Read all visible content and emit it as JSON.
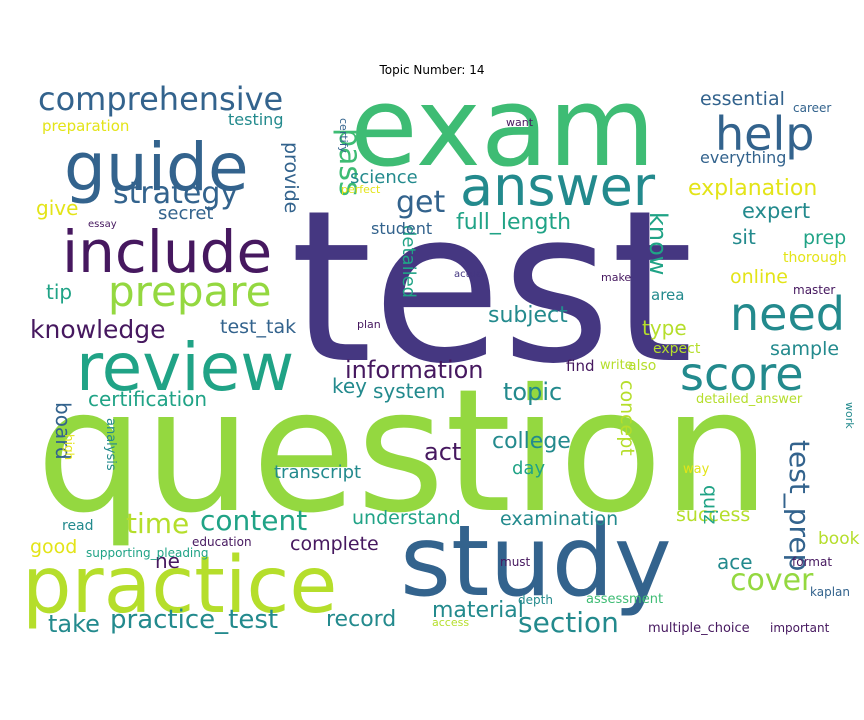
{
  "title": "Topic Number: 14",
  "palette": {
    "dark_purple": "#46185f",
    "indigo": "#453781",
    "blue": "#33638d",
    "teal": "#238a8d",
    "green": "#20a386",
    "mint": "#3ebc74",
    "lime": "#94d840",
    "yellow_green": "#b5de2b",
    "yellow": "#e3e418"
  },
  "words": [
    {
      "text": "question",
      "color": "#94d840",
      "weight": 100
    },
    {
      "text": "test",
      "color": "#453781",
      "weight": 98
    },
    {
      "text": "exam",
      "color": "#3ebc74",
      "weight": 70
    },
    {
      "text": "study",
      "color": "#33638d",
      "weight": 62
    },
    {
      "text": "practice",
      "color": "#b5de2b",
      "weight": 52
    },
    {
      "text": "review",
      "color": "#20a386",
      "weight": 38
    },
    {
      "text": "guide",
      "color": "#33638d",
      "weight": 36
    },
    {
      "text": "answer",
      "color": "#238a8d",
      "weight": 34
    },
    {
      "text": "include",
      "color": "#46185f",
      "weight": 33
    },
    {
      "text": "help",
      "color": "#33638d",
      "weight": 28
    },
    {
      "text": "need",
      "color": "#238a8d",
      "weight": 27
    },
    {
      "text": "score",
      "color": "#238a8d",
      "weight": 27
    },
    {
      "text": "prepare",
      "color": "#94d840",
      "weight": 26
    },
    {
      "text": "comprehensive",
      "color": "#33638d",
      "weight": 22
    },
    {
      "text": "strategy",
      "color": "#33638d",
      "weight": 18
    },
    {
      "text": "pass",
      "color": "#3ebc74",
      "weight": 18
    },
    {
      "text": "cover",
      "color": "#94d840",
      "weight": 18
    },
    {
      "text": "get",
      "color": "#33638d",
      "weight": 17
    },
    {
      "text": "section",
      "color": "#238a8d",
      "weight": 16
    },
    {
      "text": "test_prep",
      "color": "#33638d",
      "weight": 16
    },
    {
      "text": "time",
      "color": "#b5de2b",
      "weight": 16
    },
    {
      "text": "content",
      "color": "#20a386",
      "weight": 16
    },
    {
      "text": "knowledge",
      "color": "#46185f",
      "weight": 16
    },
    {
      "text": "practice_test",
      "color": "#238a8d",
      "weight": 15
    },
    {
      "text": "information",
      "color": "#46185f",
      "weight": 15
    },
    {
      "text": "explanation",
      "color": "#e3e418",
      "weight": 14
    },
    {
      "text": "full_length",
      "color": "#20a386",
      "weight": 14
    },
    {
      "text": "topic",
      "color": "#238a8d",
      "weight": 14
    },
    {
      "text": "know",
      "color": "#20a386",
      "weight": 14
    },
    {
      "text": "take",
      "color": "#238a8d",
      "weight": 14
    },
    {
      "text": "college",
      "color": "#238a8d",
      "weight": 13
    },
    {
      "text": "expert",
      "color": "#238a8d",
      "weight": 13
    },
    {
      "text": "subject",
      "color": "#238a8d",
      "weight": 13
    },
    {
      "text": "act",
      "color": "#46185f",
      "weight": 13
    },
    {
      "text": "material",
      "color": "#238a8d",
      "weight": 13
    },
    {
      "text": "record",
      "color": "#238a8d",
      "weight": 13
    },
    {
      "text": "essential",
      "color": "#33638d",
      "weight": 12
    },
    {
      "text": "science",
      "color": "#238a8d",
      "weight": 12
    },
    {
      "text": "secret",
      "color": "#33638d",
      "weight": 12
    },
    {
      "text": "give",
      "color": "#e3e418",
      "weight": 12
    },
    {
      "text": "tip",
      "color": "#20a386",
      "weight": 12
    },
    {
      "text": "test_tak",
      "color": "#33638d",
      "weight": 12
    },
    {
      "text": "provide",
      "color": "#33638d",
      "weight": 12
    },
    {
      "text": "sit",
      "color": "#238a8d",
      "weight": 12
    },
    {
      "text": "prep",
      "color": "#20a386",
      "weight": 12
    },
    {
      "text": "online",
      "color": "#e3e418",
      "weight": 12
    },
    {
      "text": "type",
      "color": "#b5de2b",
      "weight": 12
    },
    {
      "text": "sample",
      "color": "#238a8d",
      "weight": 12
    },
    {
      "text": "board",
      "color": "#33638d",
      "weight": 12
    },
    {
      "text": "certification",
      "color": "#20a386",
      "weight": 12
    },
    {
      "text": "system",
      "color": "#238a8d",
      "weight": 12
    },
    {
      "text": "key",
      "color": "#238a8d",
      "weight": 12
    },
    {
      "text": "detailed",
      "color": "#20a386",
      "weight": 12
    },
    {
      "text": "concept",
      "color": "#b5de2b",
      "weight": 12
    },
    {
      "text": "understand",
      "color": "#20a386",
      "weight": 12
    },
    {
      "text": "examination",
      "color": "#238a8d",
      "weight": 12
    },
    {
      "text": "success",
      "color": "#b5de2b",
      "weight": 12
    },
    {
      "text": "complete",
      "color": "#46185f",
      "weight": 12
    },
    {
      "text": "transcript",
      "color": "#238a8d",
      "weight": 11
    },
    {
      "text": "day",
      "color": "#20a386",
      "weight": 11
    },
    {
      "text": "ne",
      "color": "#46185f",
      "weight": 11
    },
    {
      "text": "good",
      "color": "#e3e418",
      "weight": 11
    },
    {
      "text": "quiz",
      "color": "#20a386",
      "weight": 11
    },
    {
      "text": "ace",
      "color": "#238a8d",
      "weight": 11
    },
    {
      "text": "book",
      "color": "#b5de2b",
      "weight": 11
    },
    {
      "text": "testing",
      "color": "#238a8d",
      "weight": 10
    },
    {
      "text": "everything",
      "color": "#33638d",
      "weight": 10
    },
    {
      "text": "student",
      "color": "#33638d",
      "weight": 9
    },
    {
      "text": "find",
      "color": "#46185f",
      "weight": 9
    },
    {
      "text": "area",
      "color": "#238a8d",
      "weight": 9
    },
    {
      "text": "thorough",
      "color": "#e3e418",
      "weight": 9
    },
    {
      "text": "preparation",
      "color": "#e3e418",
      "weight": 9
    },
    {
      "text": "expect",
      "color": "#b5de2b",
      "weight": 9
    },
    {
      "text": "detailed_answer",
      "color": "#b5de2b",
      "weight": 9
    },
    {
      "text": "write",
      "color": "#b5de2b",
      "weight": 8
    },
    {
      "text": "also",
      "color": "#b5de2b",
      "weight": 8
    },
    {
      "text": "way",
      "color": "#e3e418",
      "weight": 8
    },
    {
      "text": "career",
      "color": "#33638d",
      "weight": 8
    },
    {
      "text": "master",
      "color": "#46185f",
      "weight": 8
    },
    {
      "text": "high",
      "color": "#e3e418",
      "weight": 8
    },
    {
      "text": "analysis",
      "color": "#238a8d",
      "weight": 8
    },
    {
      "text": "read",
      "color": "#238a8d",
      "weight": 8
    },
    {
      "text": "supporting_pleading",
      "color": "#20a386",
      "weight": 8
    },
    {
      "text": "education",
      "color": "#46185f",
      "weight": 8
    },
    {
      "text": "must",
      "color": "#46185f",
      "weight": 8
    },
    {
      "text": "assessment",
      "color": "#3ebc74",
      "weight": 8
    },
    {
      "text": "depth",
      "color": "#238a8d",
      "weight": 8
    },
    {
      "text": "access",
      "color": "#b5de2b",
      "weight": 7
    },
    {
      "text": "multiple_choice",
      "color": "#46185f",
      "weight": 8
    },
    {
      "text": "important",
      "color": "#46185f",
      "weight": 8
    },
    {
      "text": "format",
      "color": "#46185f",
      "weight": 8
    },
    {
      "text": "kaplan",
      "color": "#33638d",
      "weight": 8
    },
    {
      "text": "work",
      "color": "#238a8d",
      "weight": 7
    },
    {
      "text": "make",
      "color": "#46185f",
      "weight": 7
    },
    {
      "text": "actual",
      "color": "#453781",
      "weight": 7
    },
    {
      "text": "plan",
      "color": "#46185f",
      "weight": 7
    },
    {
      "text": "essay",
      "color": "#46185f",
      "weight": 7
    },
    {
      "text": "perfect",
      "color": "#e3e418",
      "weight": 7
    },
    {
      "text": "certify",
      "color": "#33638d",
      "weight": 7
    },
    {
      "text": "want",
      "color": "#46185f",
      "weight": 7
    }
  ]
}
